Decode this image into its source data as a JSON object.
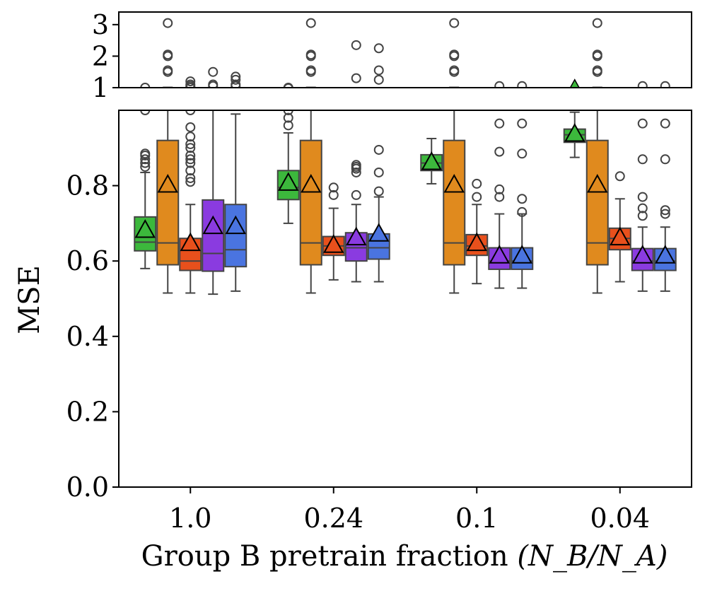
{
  "chart_data": {
    "type": "box",
    "xlabel": "Group B pretrain fraction",
    "xlabel_math": "(N_B/N_A)",
    "ylabel": "MSE",
    "categories": [
      "1.0",
      "0.24",
      "0.1",
      "0.04"
    ],
    "y_ticks_main": [
      "0.0",
      "0.2",
      "0.4",
      "0.6",
      "0.8"
    ],
    "y_ticks_top": [
      "1",
      "2",
      "3"
    ],
    "ylim_main": [
      0,
      1.0
    ],
    "ylim_top": [
      1.0,
      3.4
    ],
    "colors": [
      "#3cb83c",
      "#e08a1e",
      "#e8501c",
      "#8a3be0",
      "#4a74e0"
    ],
    "groups": [
      {
        "category": "1.0",
        "boxes": [
          {
            "q1": 0.627,
            "median": 0.65,
            "q3": 0.717,
            "wlo": 0.58,
            "whi": 0.835,
            "mean": 0.68,
            "outliers": [
              0.85,
              0.86,
              0.87,
              0.88,
              0.885,
              1.0
            ]
          },
          {
            "q1": 0.59,
            "median": 0.648,
            "q3": 0.92,
            "wlo": 0.515,
            "whi": 1.01,
            "mean": 0.8,
            "outliers": [
              1.5,
              1.55,
              2.0,
              2.05,
              3.05
            ]
          },
          {
            "q1": 0.575,
            "median": 0.6,
            "q3": 0.66,
            "wlo": 0.515,
            "whi": 0.75,
            "mean": 0.645,
            "outliers": [
              0.81,
              0.82,
              0.84,
              0.86,
              0.87,
              0.88,
              0.9,
              0.91,
              0.93,
              0.955,
              1.0,
              1.05,
              1.1,
              1.2
            ]
          },
          {
            "q1": 0.573,
            "median": 0.62,
            "q3": 0.762,
            "wlo": 0.512,
            "whi": 1.0,
            "mean": 0.69,
            "outliers": [
              1.05,
              1.1,
              1.5
            ]
          },
          {
            "q1": 0.585,
            "median": 0.63,
            "q3": 0.75,
            "wlo": 0.52,
            "whi": 0.99,
            "mean": 0.69,
            "outliers": [
              1.05,
              1.1,
              1.25,
              1.35
            ]
          }
        ]
      },
      {
        "category": "0.24",
        "boxes": [
          {
            "q1": 0.763,
            "median": 0.795,
            "q3": 0.84,
            "wlo": 0.7,
            "whi": 0.94,
            "mean": 0.805,
            "outliers": [
              0.96,
              0.98,
              1.0
            ]
          },
          {
            "q1": 0.59,
            "median": 0.648,
            "q3": 0.92,
            "wlo": 0.515,
            "whi": 1.01,
            "mean": 0.8,
            "outliers": [
              1.5,
              1.55,
              2.0,
              2.05,
              3.05
            ]
          },
          {
            "q1": 0.615,
            "median": 0.64,
            "q3": 0.665,
            "wlo": 0.55,
            "whi": 0.74,
            "mean": 0.64,
            "outliers": [
              0.775,
              0.795
            ]
          },
          {
            "q1": 0.6,
            "median": 0.635,
            "q3": 0.675,
            "wlo": 0.545,
            "whi": 0.75,
            "mean": 0.66,
            "outliers": [
              0.775,
              0.835,
              0.845,
              0.85,
              0.855,
              1.3,
              2.35
            ]
          },
          {
            "q1": 0.605,
            "median": 0.635,
            "q3": 0.672,
            "wlo": 0.545,
            "whi": 0.77,
            "mean": 0.67,
            "outliers": [
              0.785,
              0.835,
              0.895,
              1.25,
              1.55,
              2.25
            ]
          }
        ]
      },
      {
        "category": "0.1",
        "boxes": [
          {
            "q1": 0.84,
            "median": 0.86,
            "q3": 0.882,
            "wlo": 0.805,
            "whi": 0.925,
            "mean": 0.86,
            "outliers": []
          },
          {
            "q1": 0.59,
            "median": 0.648,
            "q3": 0.92,
            "wlo": 0.515,
            "whi": 1.01,
            "mean": 0.8,
            "outliers": [
              1.5,
              1.55,
              2.0,
              2.05,
              3.05
            ]
          },
          {
            "q1": 0.615,
            "median": 0.64,
            "q3": 0.67,
            "wlo": 0.54,
            "whi": 0.75,
            "mean": 0.645,
            "outliers": [
              0.77,
              0.805
            ]
          },
          {
            "q1": 0.578,
            "median": 0.6,
            "q3": 0.635,
            "wlo": 0.528,
            "whi": 0.725,
            "mean": 0.612,
            "outliers": [
              0.77,
              0.79,
              0.89,
              0.965,
              1.05
            ]
          },
          {
            "q1": 0.578,
            "median": 0.6,
            "q3": 0.635,
            "wlo": 0.528,
            "whi": 0.725,
            "mean": 0.612,
            "outliers": [
              0.73,
              0.765,
              0.885,
              0.965,
              1.05
            ]
          }
        ]
      },
      {
        "category": "0.04",
        "boxes": [
          {
            "q1": 0.915,
            "median": 0.935,
            "q3": 0.95,
            "wlo": 0.875,
            "whi": 0.995,
            "mean": 0.935,
            "outliers": []
          },
          {
            "q1": 0.59,
            "median": 0.648,
            "q3": 0.92,
            "wlo": 0.515,
            "whi": 1.01,
            "mean": 0.8,
            "outliers": [
              1.5,
              1.55,
              2.0,
              2.05,
              3.05
            ]
          },
          {
            "q1": 0.63,
            "median": 0.66,
            "q3": 0.687,
            "wlo": 0.545,
            "whi": 0.765,
            "mean": 0.66,
            "outliers": [
              0.825
            ]
          },
          {
            "q1": 0.575,
            "median": 0.6,
            "q3": 0.633,
            "wlo": 0.52,
            "whi": 0.69,
            "mean": 0.612,
            "outliers": [
              0.72,
              0.74,
              0.77,
              0.87,
              0.965,
              1.05
            ]
          },
          {
            "q1": 0.575,
            "median": 0.6,
            "q3": 0.633,
            "wlo": 0.52,
            "whi": 0.69,
            "mean": 0.612,
            "outliers": [
              0.725,
              0.735,
              0.87,
              0.965,
              1.05
            ]
          }
        ]
      }
    ]
  }
}
